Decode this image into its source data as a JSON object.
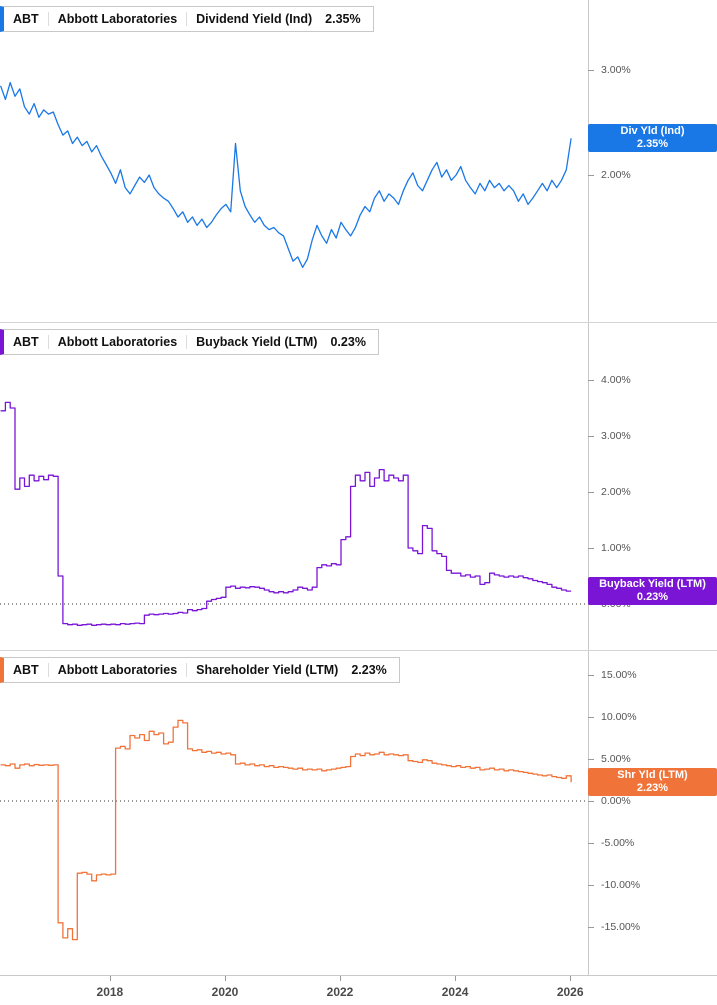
{
  "x_axis": {
    "min": 2016.09,
    "max": 2026.31,
    "ticks": [
      {
        "year": 2018,
        "label": "2018"
      },
      {
        "year": 2020,
        "label": "2020"
      },
      {
        "year": 2022,
        "label": "2022"
      },
      {
        "year": 2024,
        "label": "2024"
      },
      {
        "year": 2026,
        "label": "2026"
      }
    ]
  },
  "chart_data": [
    {
      "type": "line",
      "id": "dividend-yield",
      "title": "ABT Abbott Laboratories Dividend Yield (Ind) 2.35%",
      "header": {
        "ticker": "ABT",
        "company": "Abbott Laboratories",
        "metric": "Dividend Yield (Ind)",
        "value": "2.35%"
      },
      "tag": {
        "line1": "Div Yld (Ind)",
        "line2": "2.35%"
      },
      "color": "#1a78e6",
      "line_style": "linear",
      "zero_line": false,
      "y_min": 0.6,
      "y_max": 3.667,
      "y_ticks": [
        {
          "value": 3.0,
          "label": "3.00%"
        },
        {
          "value": 2.0,
          "label": "2.00%"
        }
      ],
      "series_name": "Dividend Yield (Ind)",
      "x_start": 2016.1,
      "x_step": 0.083333,
      "values": [
        2.85,
        2.72,
        2.88,
        2.75,
        2.82,
        2.65,
        2.58,
        2.68,
        2.55,
        2.62,
        2.58,
        2.6,
        2.48,
        2.38,
        2.42,
        2.3,
        2.36,
        2.28,
        2.32,
        2.22,
        2.28,
        2.18,
        2.1,
        2.02,
        1.92,
        2.05,
        1.88,
        1.82,
        1.9,
        1.98,
        1.93,
        2.0,
        1.88,
        1.82,
        1.78,
        1.75,
        1.68,
        1.6,
        1.65,
        1.55,
        1.6,
        1.52,
        1.58,
        1.5,
        1.55,
        1.62,
        1.68,
        1.72,
        1.65,
        2.3,
        1.85,
        1.7,
        1.62,
        1.55,
        1.6,
        1.52,
        1.48,
        1.5,
        1.45,
        1.42,
        1.3,
        1.18,
        1.22,
        1.12,
        1.2,
        1.38,
        1.52,
        1.42,
        1.35,
        1.48,
        1.4,
        1.55,
        1.48,
        1.42,
        1.5,
        1.62,
        1.7,
        1.65,
        1.78,
        1.85,
        1.75,
        1.82,
        1.78,
        1.72,
        1.85,
        1.95,
        2.02,
        1.9,
        1.85,
        1.95,
        2.05,
        2.12,
        1.98,
        2.05,
        1.95,
        2.0,
        2.08,
        1.95,
        1.88,
        1.82,
        1.92,
        1.85,
        1.95,
        1.88,
        1.92,
        1.85,
        1.9,
        1.85,
        1.75,
        1.82,
        1.72,
        1.78,
        1.85,
        1.92,
        1.85,
        1.95,
        1.88,
        1.95,
        2.05,
        2.35
      ]
    },
    {
      "type": "line",
      "id": "buyback-yield",
      "title": "ABT Abbott Laboratories Buyback Yield (LTM) 0.23%",
      "header": {
        "ticker": "ABT",
        "company": "Abbott Laboratories",
        "metric": "Buyback Yield (LTM)",
        "value": "0.23%"
      },
      "tag": {
        "line1": "Buyback Yield (LTM)",
        "line2": "0.23%"
      },
      "color": "#7a15d6",
      "line_style": "step",
      "zero_line": true,
      "y_min": -0.821,
      "y_max": 5.018,
      "y_ticks": [
        {
          "value": 4.0,
          "label": "4.00%"
        },
        {
          "value": 3.0,
          "label": "3.00%"
        },
        {
          "value": 2.0,
          "label": "2.00%"
        },
        {
          "value": 1.0,
          "label": "1.00%"
        },
        {
          "value": 0.0,
          "label": "0.00%"
        }
      ],
      "series_name": "Buyback Yield (LTM)",
      "x_start": 2016.1,
      "x_step": 0.083333,
      "values": [
        3.45,
        3.6,
        3.5,
        2.05,
        2.25,
        2.1,
        2.3,
        2.2,
        2.28,
        2.22,
        2.3,
        2.28,
        0.5,
        -0.35,
        -0.37,
        -0.36,
        -0.38,
        -0.37,
        -0.36,
        -0.38,
        -0.37,
        -0.36,
        -0.37,
        -0.36,
        -0.37,
        -0.35,
        -0.36,
        -0.35,
        -0.34,
        -0.35,
        -0.2,
        -0.18,
        -0.19,
        -0.18,
        -0.17,
        -0.18,
        -0.17,
        -0.15,
        -0.16,
        -0.1,
        -0.12,
        -0.1,
        -0.08,
        0.05,
        0.08,
        0.1,
        0.12,
        0.3,
        0.32,
        0.28,
        0.3,
        0.29,
        0.31,
        0.3,
        0.28,
        0.25,
        0.22,
        0.2,
        0.22,
        0.2,
        0.22,
        0.25,
        0.3,
        0.28,
        0.25,
        0.3,
        0.65,
        0.7,
        0.68,
        0.72,
        0.7,
        1.15,
        1.2,
        2.1,
        2.3,
        2.2,
        2.35,
        2.1,
        2.25,
        2.4,
        2.2,
        2.3,
        2.25,
        2.2,
        2.3,
        1.0,
        0.95,
        0.9,
        1.4,
        1.35,
        0.95,
        0.9,
        0.85,
        0.6,
        0.55,
        0.55,
        0.5,
        0.52,
        0.48,
        0.5,
        0.35,
        0.38,
        0.55,
        0.52,
        0.5,
        0.48,
        0.5,
        0.48,
        0.5,
        0.47,
        0.45,
        0.42,
        0.4,
        0.38,
        0.35,
        0.3,
        0.28,
        0.25,
        0.23,
        0.23
      ]
    },
    {
      "type": "line",
      "id": "shareholder-yield",
      "title": "ABT Abbott Laboratories Shareholder Yield (LTM) 2.23%",
      "header": {
        "ticker": "ABT",
        "company": "Abbott Laboratories",
        "metric": "Shareholder Yield (LTM)",
        "value": "2.23%"
      },
      "tag": {
        "line1": "Shr Yld (LTM)",
        "line2": "2.23%"
      },
      "color": "#f0743a",
      "line_style": "step",
      "zero_line": true,
      "y_min": -20.714,
      "y_max": 17.857,
      "y_ticks": [
        {
          "value": 15.0,
          "label": "15.00%"
        },
        {
          "value": 10.0,
          "label": "10.00%"
        },
        {
          "value": 5.0,
          "label": "5.00%"
        },
        {
          "value": 0.0,
          "label": "0.00%"
        },
        {
          "value": -5.0,
          "label": "-5.00%"
        },
        {
          "value": -10.0,
          "label": "-10.00%"
        },
        {
          "value": -15.0,
          "label": "-15.00%"
        }
      ],
      "series_name": "Shareholder Yield (LTM)",
      "x_start": 2016.1,
      "x_step": 0.083333,
      "values": [
        4.3,
        4.2,
        4.4,
        3.9,
        4.3,
        4.4,
        4.2,
        4.35,
        4.25,
        4.3,
        4.25,
        4.3,
        -14.5,
        -16.3,
        -15.2,
        -16.5,
        -8.6,
        -8.5,
        -8.7,
        -9.5,
        -8.8,
        -8.7,
        -8.8,
        -8.7,
        6.3,
        6.5,
        6.2,
        7.8,
        7.5,
        7.9,
        7.2,
        8.3,
        7.9,
        8.1,
        6.8,
        7.0,
        8.8,
        9.6,
        9.3,
        6.2,
        6.0,
        6.1,
        5.8,
        5.9,
        5.7,
        5.8,
        5.6,
        5.7,
        5.5,
        4.4,
        4.5,
        4.3,
        4.4,
        4.2,
        4.3,
        4.1,
        4.2,
        4.0,
        4.1,
        4.0,
        3.9,
        3.8,
        3.9,
        3.7,
        3.8,
        3.7,
        3.8,
        3.6,
        3.7,
        3.8,
        3.9,
        4.0,
        4.1,
        5.3,
        5.6,
        5.4,
        5.7,
        5.5,
        5.6,
        5.8,
        5.5,
        5.6,
        5.5,
        5.4,
        5.5,
        4.8,
        4.7,
        4.6,
        4.9,
        4.8,
        4.5,
        4.4,
        4.3,
        4.2,
        4.1,
        4.2,
        4.0,
        4.1,
        3.9,
        4.0,
        3.7,
        3.8,
        3.9,
        3.7,
        3.8,
        3.6,
        3.7,
        3.6,
        3.5,
        3.4,
        3.3,
        3.2,
        3.1,
        3.0,
        3.1,
        2.9,
        2.8,
        2.7,
        3.0,
        2.23
      ]
    }
  ]
}
